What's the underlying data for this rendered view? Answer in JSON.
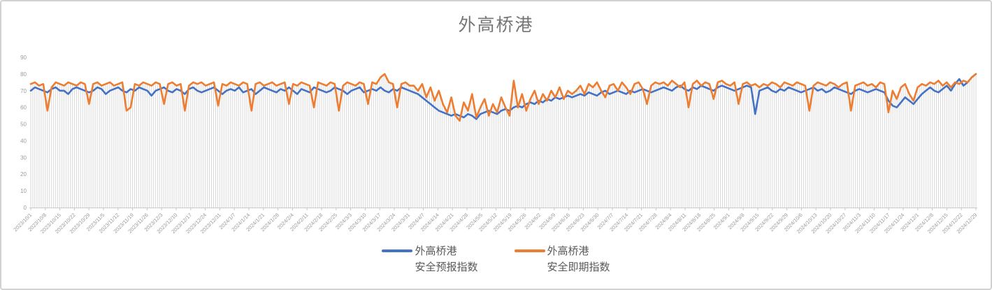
{
  "chart": {
    "title": "外高桥港"
  },
  "legend": {
    "items": [
      {
        "line1": "外高桥港",
        "line2": "安全预报指数",
        "color": "#4472C4"
      },
      {
        "line1": "外高桥港",
        "line2": "安全即期指数",
        "color": "#ED7D31"
      }
    ]
  },
  "chart_data": {
    "type": "line",
    "title": "外高桥港",
    "xlabel": "",
    "ylabel": "",
    "ylim": [
      0,
      90
    ],
    "y_ticks": [
      0,
      10,
      20,
      30,
      40,
      50,
      60,
      70,
      80,
      90
    ],
    "grid": "vertical-drop-lines-only",
    "legend_position": "bottom",
    "x_tick_interval_days": 7,
    "sample_interval_days": 2,
    "x_tick_labels": [
      "2023/10/1",
      "2023/10/8",
      "2023/10/15",
      "2023/10/22",
      "2023/10/29",
      "2023/11/5",
      "2023/11/12",
      "2023/11/19",
      "2023/11/26",
      "2023/12/3",
      "2023/12/10",
      "2023/12/17",
      "2023/12/24",
      "2023/12/31",
      "2024/1/7",
      "2024/1/14",
      "2024/1/21",
      "2024/1/28",
      "2024/2/4",
      "2024/2/11",
      "2024/2/18",
      "2024/2/25",
      "2024/3/3",
      "2024/3/10",
      "2024/3/17",
      "2024/3/24",
      "2024/3/31",
      "2024/4/7",
      "2024/4/14",
      "2024/4/21",
      "2024/4/28",
      "2024/5/5",
      "2024/5/12",
      "2024/5/19",
      "2024/5/26",
      "2024/6/2",
      "2024/6/9",
      "2024/6/16",
      "2024/6/23",
      "2024/6/30",
      "2024/7/7",
      "2024/7/14",
      "2024/7/21",
      "2024/7/28",
      "2024/8/4",
      "2024/8/11",
      "2024/8/18",
      "2024/8/25",
      "2024/9/1",
      "2024/9/8",
      "2024/9/15",
      "2024/9/22",
      "2024/9/29",
      "2024/10/6",
      "2024/10/13",
      "2024/10/20",
      "2024/10/27",
      "2024/11/3",
      "2024/11/10",
      "2024/11/17",
      "2024/11/24",
      "2024/12/1",
      "2024/12/8",
      "2024/12/15",
      "2024/12/22",
      "2024/12/29"
    ],
    "dropline_color": "#d9d9d9",
    "axis_color": "#c9c9c9",
    "label_color": "#9b9b9b",
    "series": [
      {
        "name": "外高桥港安全预报指数",
        "color": "#4472C4",
        "values": [
          70,
          72,
          71,
          70,
          69,
          71,
          72,
          70,
          70,
          68,
          71,
          72,
          71,
          70,
          69,
          70,
          72,
          71,
          68,
          70,
          71,
          72,
          70,
          69,
          71,
          70,
          72,
          71,
          70,
          67,
          70,
          71,
          72,
          70,
          69,
          71,
          70,
          68,
          71,
          72,
          70,
          69,
          70,
          71,
          72,
          70,
          68,
          70,
          71,
          70,
          72,
          69,
          70,
          71,
          68,
          70,
          72,
          71,
          70,
          69,
          71,
          70,
          72,
          70,
          68,
          71,
          70,
          69,
          72,
          71,
          70,
          69,
          70,
          72,
          71,
          70,
          68,
          70,
          71,
          72,
          69,
          70,
          71,
          70,
          72,
          70,
          69,
          71,
          70,
          72,
          71,
          70,
          69,
          68,
          66,
          64,
          62,
          60,
          58,
          57,
          56,
          55,
          56,
          55,
          54,
          56,
          55,
          53,
          56,
          57,
          58,
          57,
          56,
          58,
          59,
          58,
          60,
          61,
          60,
          62,
          63,
          62,
          64,
          63,
          65,
          64,
          66,
          65,
          66,
          67,
          66,
          67,
          68,
          67,
          69,
          68,
          67,
          69,
          70,
          68,
          69,
          70,
          69,
          68,
          70,
          69,
          70,
          71,
          70,
          69,
          70,
          71,
          72,
          71,
          70,
          72,
          73,
          71,
          70,
          72,
          71,
          73,
          72,
          71,
          70,
          72,
          73,
          72,
          71,
          70,
          71,
          72,
          73,
          72,
          56,
          70,
          71,
          72,
          70,
          69,
          71,
          70,
          72,
          71,
          70,
          69,
          70,
          71,
          72,
          70,
          71,
          69,
          70,
          72,
          71,
          70,
          69,
          68,
          70,
          71,
          70,
          69,
          70,
          71,
          70,
          69,
          64,
          61,
          60,
          63,
          66,
          64,
          62,
          65,
          68,
          70,
          72,
          70,
          69,
          71,
          73,
          70,
          74,
          77,
          73,
          75,
          78,
          80
        ]
      },
      {
        "name": "外高桥港安全即期指数",
        "color": "#ED7D31",
        "values": [
          74,
          75,
          73,
          74,
          58,
          72,
          75,
          74,
          73,
          75,
          74,
          73,
          75,
          74,
          62,
          74,
          75,
          73,
          74,
          75,
          73,
          74,
          75,
          58,
          60,
          74,
          73,
          75,
          74,
          73,
          75,
          74,
          62,
          74,
          75,
          73,
          74,
          58,
          73,
          75,
          74,
          75,
          73,
          74,
          75,
          61,
          74,
          73,
          75,
          74,
          73,
          75,
          74,
          58,
          74,
          75,
          73,
          74,
          75,
          73,
          74,
          75,
          62,
          74,
          73,
          75,
          74,
          73,
          60,
          75,
          74,
          73,
          75,
          74,
          58,
          73,
          75,
          74,
          73,
          75,
          74,
          62,
          75,
          74,
          78,
          80,
          75,
          74,
          60,
          74,
          75,
          73,
          73,
          70,
          74,
          66,
          72,
          64,
          70,
          62,
          57,
          66,
          55,
          52,
          63,
          58,
          68,
          54,
          60,
          65,
          55,
          62,
          57,
          66,
          60,
          55,
          76,
          60,
          68,
          58,
          65,
          70,
          62,
          68,
          64,
          70,
          66,
          72,
          65,
          70,
          68,
          70,
          73,
          68,
          74,
          72,
          75,
          70,
          66,
          73,
          74,
          70,
          75,
          72,
          68,
          74,
          75,
          71,
          62,
          73,
          75,
          74,
          75,
          73,
          76,
          74,
          72,
          75,
          60,
          74,
          76,
          73,
          75,
          74,
          65,
          75,
          76,
          74,
          73,
          75,
          62,
          74,
          75,
          73,
          74,
          72,
          74,
          73,
          75,
          74,
          72,
          75,
          74,
          73,
          75,
          74,
          73,
          58,
          73,
          75,
          74,
          73,
          75,
          74,
          72,
          74,
          75,
          58,
          73,
          74,
          75,
          73,
          74,
          72,
          75,
          74,
          57,
          70,
          65,
          72,
          74,
          68,
          64,
          72,
          74,
          73,
          75,
          74,
          76,
          73,
          75,
          72,
          75,
          74,
          76,
          75,
          78,
          80
        ]
      }
    ]
  }
}
